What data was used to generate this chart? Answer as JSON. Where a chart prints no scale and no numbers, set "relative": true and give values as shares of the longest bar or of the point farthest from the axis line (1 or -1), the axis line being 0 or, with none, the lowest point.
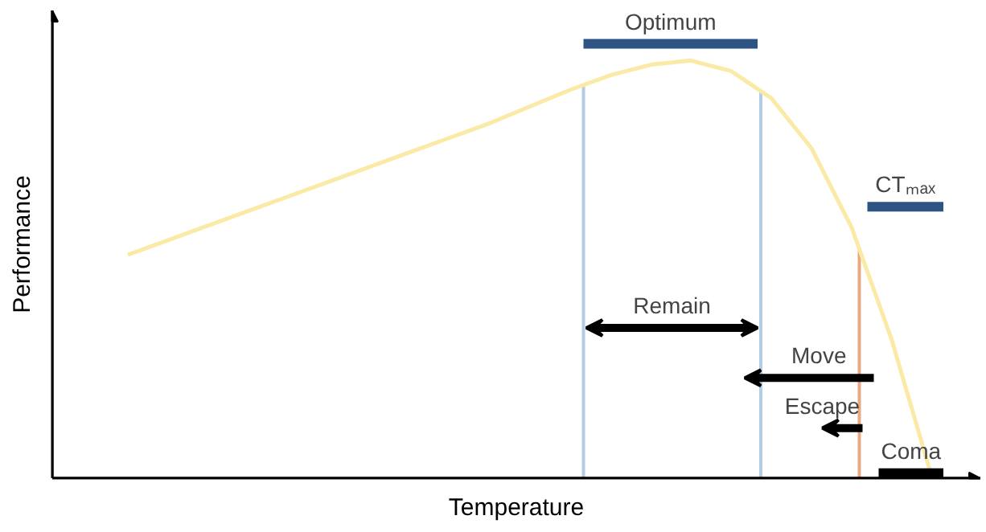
{
  "chart_data": {
    "type": "line",
    "relative": true,
    "xlabel": "Temperature",
    "ylabel": "Performance",
    "grid": false,
    "tick_labels": false,
    "categories": [
      null,
      null,
      null,
      null,
      null,
      null,
      null,
      null,
      null,
      null,
      null,
      null,
      null,
      null,
      null,
      null,
      null,
      null,
      null,
      null,
      null
    ],
    "series": [
      {
        "color": "#fbe9a6",
        "values": [
          0.535,
          0.57,
          0.605,
          0.64,
          0.675,
          0.71,
          0.745,
          0.78,
          0.815,
          0.85,
          0.89,
          0.93,
          0.965,
          0.99,
          1.0,
          0.975,
          0.91,
          0.79,
          0.6,
          0.33,
          0.0
        ]
      }
    ],
    "annotations": [
      "Optimum",
      "CTₘₐₓ",
      "Remain",
      "Move",
      "Escape",
      "Coma"
    ]
  }
}
